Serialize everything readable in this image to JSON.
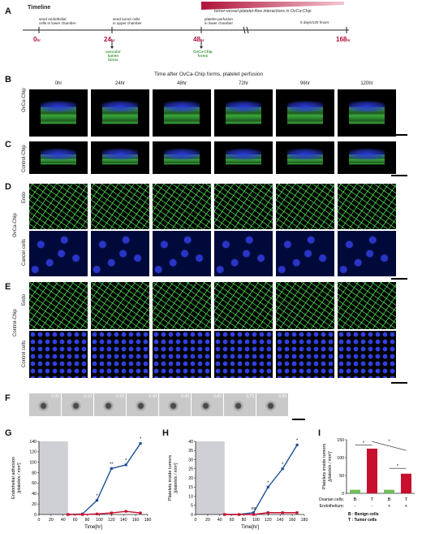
{
  "panels": {
    "A": "A",
    "B": "B",
    "C": "C",
    "D": "D",
    "E": "E",
    "F": "F",
    "G": "G",
    "H": "H",
    "I": "I"
  },
  "timeline": {
    "title": "Timeline",
    "banner": "tumor-vessel-platelet-flow interactions in OvCa-Chip",
    "events": [
      {
        "label": "seed endothelial\ncells in lower chamber",
        "time": "0",
        "unit": "hr",
        "below": ""
      },
      {
        "label": "seed tumor cells\nin upper chamber",
        "time": "24",
        "unit": "hr",
        "below": "vascular\nlumen\nforms"
      },
      {
        "label": "platelet perfusion\nin lower chamber",
        "time": "48",
        "unit": "hr",
        "below": "OvCa-Chip\nforms"
      },
      {
        "label": "5 days/120 hours",
        "time": "168",
        "unit": "hr",
        "below": ""
      }
    ]
  },
  "rows": {
    "header": "Time after OvCa-Chip forms, platelet perfusion",
    "times": [
      "0hr",
      "24hr",
      "48hr",
      "72hr",
      "96hr",
      "120hr"
    ],
    "B_label": "OvCa-Chip",
    "C_label": "Control-Chip",
    "D_group": "OvCa-Chip",
    "D_top": "Endo",
    "D_bottom": "Cancer cells",
    "E_group": "Control-Chip",
    "E_top": "Endo",
    "E_bottom": "Control cells"
  },
  "F_times": [
    "0.00",
    "0.10",
    "0.20",
    "0.30",
    "0.40",
    "0.60",
    "0.70",
    "0.80"
  ],
  "colors": {
    "tissue": "#38a83a",
    "nuclei": "#2b3ad6",
    "ovca": "#1f4e9a",
    "control": "#c8102e",
    "benign": "#6fbf5a"
  },
  "chart_data": [
    {
      "type": "line",
      "ylabel": "Endothelial adhesion\n[platelets / mm²]",
      "xlabel": "Time[hr]",
      "xlim": [
        0,
        180
      ],
      "ylim": [
        0,
        140
      ],
      "xticks": [
        0,
        20,
        40,
        60,
        80,
        100,
        120,
        140,
        160,
        180
      ],
      "yticks": [
        0,
        20,
        40,
        60,
        80,
        100,
        120,
        140
      ],
      "shade": [
        0,
        48
      ],
      "series": [
        {
          "x": [
            48,
            72,
            96,
            120,
            144,
            168
          ],
          "values": [
            0,
            1,
            27,
            88,
            95,
            136
          ],
          "color": "#1f4e9a"
        },
        {
          "x": [
            48,
            72,
            96,
            120,
            144,
            168
          ],
          "values": [
            0,
            0,
            1,
            3,
            6,
            3
          ],
          "color": "#c8102e"
        }
      ],
      "marks": [
        {
          "x": 96,
          "y": 27,
          "t": "*"
        },
        {
          "x": 120,
          "y": 88,
          "t": "**"
        },
        {
          "x": 144,
          "y": 95,
          "t": "*"
        },
        {
          "x": 168,
          "y": 136,
          "t": "*"
        }
      ]
    },
    {
      "type": "line",
      "ylabel": "Platelets inside tumors\n[platelets / mm²]",
      "xlabel": "Time[hr]",
      "xlim": [
        0,
        180
      ],
      "ylim": [
        0,
        40
      ],
      "xticks": [
        0,
        20,
        40,
        60,
        80,
        100,
        120,
        140,
        160,
        180
      ],
      "yticks": [
        0,
        5,
        10,
        15,
        20,
        25,
        30,
        35,
        40
      ],
      "shade": [
        0,
        48
      ],
      "series": [
        {
          "x": [
            48,
            72,
            96,
            120,
            144,
            168
          ],
          "values": [
            0,
            0,
            1,
            15,
            25,
            38
          ],
          "color": "#1f4e9a"
        },
        {
          "x": [
            48,
            72,
            96,
            120,
            144,
            168
          ],
          "values": [
            0,
            0,
            0,
            1,
            1,
            1
          ],
          "color": "#c8102e"
        }
      ],
      "marks": [
        {
          "x": 96,
          "y": 1,
          "t": "ns"
        },
        {
          "x": 120,
          "y": 15,
          "t": "*"
        },
        {
          "x": 144,
          "y": 25,
          "t": "*"
        },
        {
          "x": 168,
          "y": 38,
          "t": "*"
        }
      ]
    },
    {
      "type": "bar",
      "ylabel": "Platelets inside tumors\n[platelets / mm²]",
      "ylim": [
        0,
        150
      ],
      "yticks": [
        0,
        50,
        100,
        150
      ],
      "categories": [
        "B",
        "T",
        "B",
        "T"
      ],
      "values": [
        10,
        125,
        10,
        55
      ],
      "colors": [
        "#6fbf5a",
        "#c8102e",
        "#6fbf5a",
        "#c8102e"
      ],
      "row1_label": "Ovarian cells:",
      "row2_label": "Endothelium:",
      "row2": [
        "-",
        "-",
        "+",
        "+"
      ],
      "legend": [
        "B : Benign cells",
        "T : Tumor cells"
      ]
    }
  ]
}
